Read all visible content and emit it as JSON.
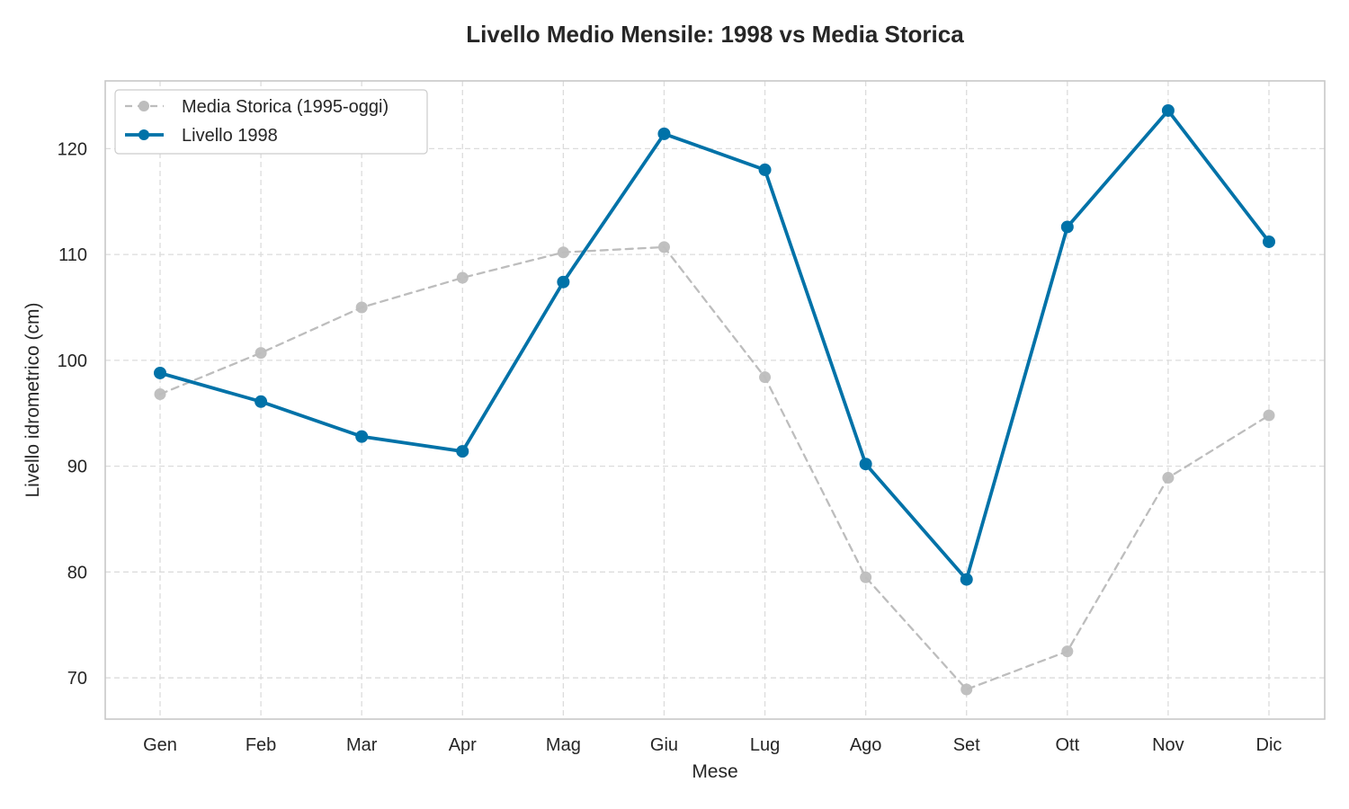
{
  "chart_data": {
    "type": "line",
    "title": "Livello Medio Mensile: 1998 vs Media Storica",
    "xlabel": "Mese",
    "ylabel": "Livello idrometrico (cm)",
    "categories": [
      "Gen",
      "Feb",
      "Mar",
      "Apr",
      "Mag",
      "Giu",
      "Lug",
      "Ago",
      "Set",
      "Ott",
      "Nov",
      "Dic"
    ],
    "ylim": [
      66.1,
      126.4
    ],
    "yticks": [
      70,
      80,
      90,
      100,
      110,
      120
    ],
    "grid": true,
    "legend_position": "top-left",
    "series": [
      {
        "name": "Media Storica (1995-oggi)",
        "color": "#bdbdbd",
        "style": "dashed",
        "values": [
          96.8,
          100.7,
          105.0,
          107.8,
          110.2,
          110.7,
          98.4,
          79.5,
          68.9,
          72.5,
          88.9,
          94.8
        ]
      },
      {
        "name": "Livello 1998",
        "color": "#0072a8",
        "style": "solid",
        "values": [
          98.8,
          96.1,
          92.8,
          91.4,
          107.4,
          121.4,
          118.0,
          90.2,
          79.3,
          112.6,
          123.6,
          111.2
        ]
      }
    ]
  }
}
